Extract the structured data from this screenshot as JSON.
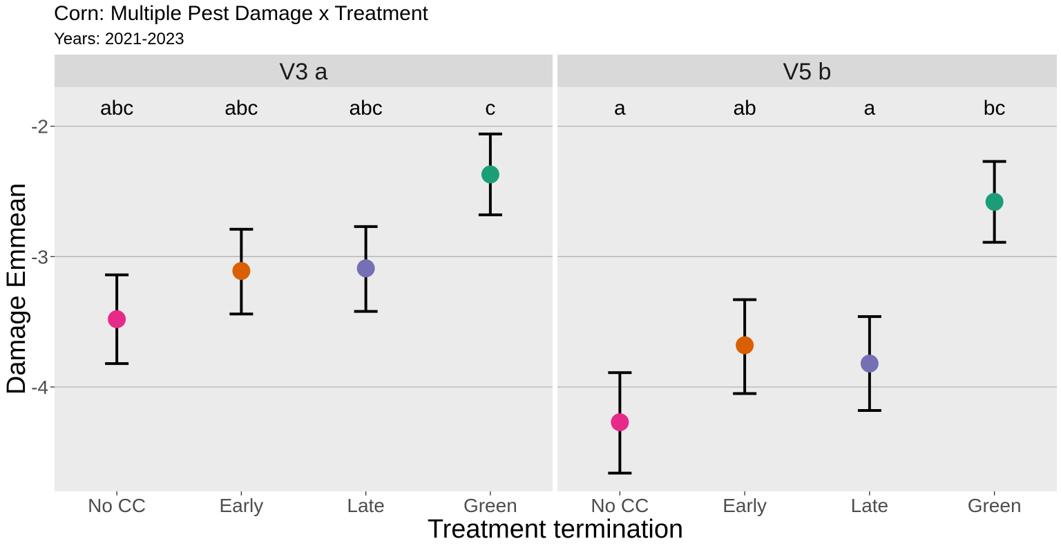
{
  "title": "Corn: Multiple Pest Damage x Treatment",
  "subtitle": "Years: 2021-2023",
  "chart_data": {
    "type": "scatter",
    "xlabel": "Treatment termination",
    "ylabel": "Damage Emmean",
    "categories": [
      "No CC",
      "Early",
      "Late",
      "Green"
    ],
    "ylim": [
      -4.8,
      -1.7
    ],
    "yticks": [
      -4,
      -3,
      -2
    ],
    "grid": true,
    "legend": "none",
    "colors": {
      "No CC": "#e7298a",
      "Early": "#d95f02",
      "Late": "#7570b3",
      "Green": "#1b9e77"
    },
    "panels": [
      {
        "label": "V3  a",
        "letters": [
          "abc",
          "abc",
          "abc",
          "c"
        ],
        "emmean": [
          -3.48,
          -3.11,
          -3.09,
          -2.37
        ],
        "lower": [
          -3.82,
          -3.44,
          -3.42,
          -2.68
        ],
        "upper": [
          -3.14,
          -2.79,
          -2.77,
          -2.06
        ]
      },
      {
        "label": "V5  b",
        "letters": [
          "a",
          "ab",
          "a",
          "bc"
        ],
        "emmean": [
          -4.27,
          -3.68,
          -3.82,
          -2.58
        ],
        "lower": [
          -4.66,
          -4.05,
          -4.18,
          -2.89
        ],
        "upper": [
          -3.89,
          -3.33,
          -3.46,
          -2.27
        ]
      }
    ]
  }
}
